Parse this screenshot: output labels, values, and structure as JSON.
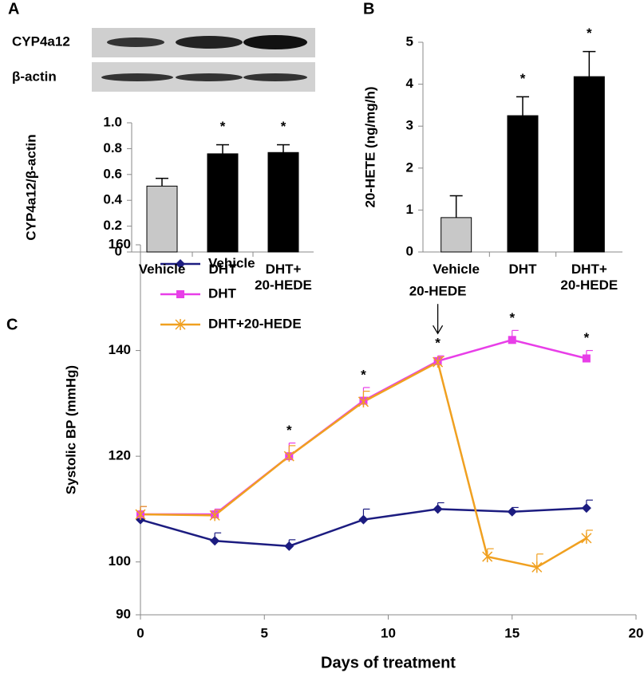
{
  "chart_data": [
    {
      "type": "bar",
      "panel": "A",
      "blot_labels": [
        "CYP4a12",
        "β-actin"
      ],
      "ylabel": "CYP4a12/β-actin",
      "categories": [
        "Vehicle",
        "DHT",
        "DHT+\n20-HEDE"
      ],
      "values": [
        0.51,
        0.76,
        0.77
      ],
      "errors": [
        0.06,
        0.07,
        0.06
      ],
      "colors": [
        "#c8c8c8",
        "#000000",
        "#000000"
      ],
      "ylim": [
        0,
        1
      ],
      "yticks": [
        0,
        0.2,
        0.4,
        0.6,
        0.8,
        {
          "value": 1,
          "label": "1.0"
        }
      ],
      "annotations": [
        {
          "text": "*",
          "x": "DHT"
        },
        {
          "text": "*",
          "x": "DHT+\n20-HEDE"
        }
      ]
    },
    {
      "type": "bar",
      "panel": "B",
      "ylabel": "20-HETE (ng/mg/h)",
      "categories": [
        "Vehicle",
        "DHT",
        "DHT+\n20-HEDE"
      ],
      "values": [
        0.82,
        3.25,
        4.18
      ],
      "errors": [
        0.52,
        0.45,
        0.6
      ],
      "colors": [
        "#c8c8c8",
        "#000000",
        "#000000"
      ],
      "ylim": [
        0,
        5
      ],
      "yticks": [
        0,
        1,
        2,
        3,
        4,
        5
      ],
      "annotations": [
        {
          "text": "*",
          "x": "DHT"
        },
        {
          "text": "*",
          "x": "DHT+\n20-HEDE"
        }
      ]
    },
    {
      "type": "line",
      "panel": "C",
      "xlabel": "Days of treatment",
      "ylabel": "Systolic BP (mmHg)",
      "xlim": [
        0,
        20
      ],
      "xticks": [
        0,
        5,
        10,
        15,
        20
      ],
      "ylim": [
        90,
        160
      ],
      "yticks": [
        90,
        100,
        120,
        140,
        160
      ],
      "legend": "upper left",
      "series": [
        {
          "name": "Vehicle",
          "color": "#1c1c80",
          "marker": "diamond",
          "x": [
            0,
            3,
            6,
            9,
            12,
            15,
            18
          ],
          "values": [
            108,
            104,
            103,
            108,
            110,
            109.5,
            110.2
          ],
          "errors": [
            2.5,
            1.5,
            1.2,
            2,
            1.2,
            0.8,
            1.5
          ]
        },
        {
          "name": "DHT",
          "color": "#e83ee8",
          "marker": "square",
          "x": [
            0,
            3,
            6,
            9,
            12,
            15,
            18
          ],
          "values": [
            109,
            109,
            120,
            130.5,
            138,
            142,
            138.5
          ],
          "errors": [
            1.5,
            1,
            2.5,
            2.5,
            1,
            1.8,
            1.5
          ]
        },
        {
          "name": "DHT+20-HEDE",
          "color": "#f0a020",
          "marker": "star",
          "x": [
            0,
            3,
            6,
            9,
            12,
            14,
            16,
            18
          ],
          "values": [
            109,
            108.8,
            120,
            130.3,
            137.8,
            101,
            99,
            104.5
          ],
          "errors": [
            1.5,
            1,
            2,
            2,
            1,
            1.5,
            2.5,
            1.5
          ]
        }
      ],
      "annotations": [
        {
          "text": "*",
          "x": 6
        },
        {
          "text": "*",
          "x": 9
        },
        {
          "text": "*",
          "x": 12
        },
        {
          "text": "*",
          "x": 15
        },
        {
          "text": "*",
          "x": 18
        },
        {
          "text": "20-HEDE",
          "x": 12,
          "arrow": true
        }
      ]
    }
  ]
}
